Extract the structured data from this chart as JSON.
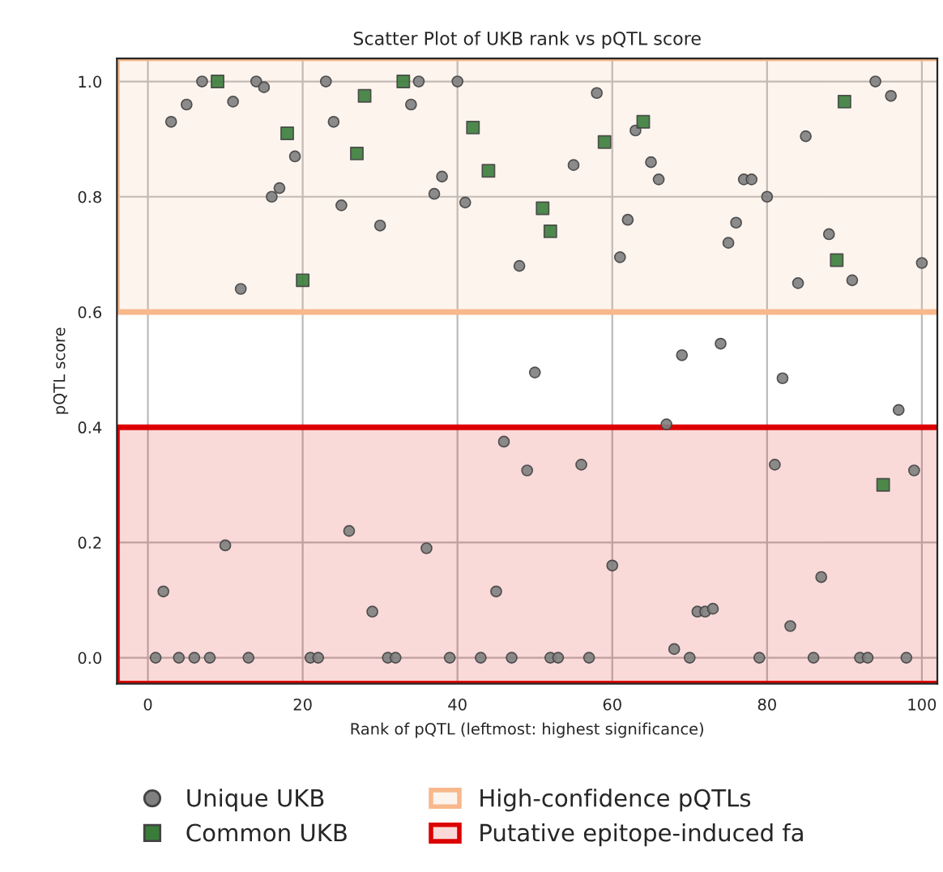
{
  "chart_data": {
    "type": "scatter",
    "title": "Scatter Plot of UKB rank vs pQTL score",
    "xlabel": "Rank of pQTL (leftmost: highest significance)",
    "ylabel": "pQTL score",
    "xlim": [
      -4,
      102
    ],
    "xticks": [
      0,
      20,
      40,
      60,
      80,
      100
    ],
    "ylim": [
      -0.045,
      1.04
    ],
    "yticks": [
      {
        "value": 0,
        "label": "0.0"
      },
      {
        "value": 0.2,
        "label": "0.2"
      },
      {
        "value": 0.4,
        "label": "0.4"
      },
      {
        "value": 0.6,
        "label": "0.6"
      },
      {
        "value": 0.8,
        "label": "0.8"
      },
      {
        "value": 1.0,
        "label": "1.0"
      }
    ],
    "grid": true,
    "legend": "bottom",
    "series": [
      {
        "name": "Unique UKB",
        "color": "#808080",
        "marker": "circle",
        "x": [
          3,
          5,
          7,
          11,
          14,
          15,
          19,
          16,
          17,
          12,
          23,
          24,
          25,
          30,
          35,
          34,
          38,
          37,
          40,
          41,
          48,
          58,
          55,
          62,
          61,
          63,
          65,
          66,
          77,
          78,
          80,
          76,
          75,
          85,
          94,
          96,
          88,
          84,
          91,
          100,
          1,
          4,
          6,
          8,
          13,
          21,
          22,
          31,
          32,
          39,
          43,
          47,
          52,
          53,
          57,
          70,
          79,
          86,
          92,
          93,
          98,
          2,
          10,
          26,
          29,
          36,
          45,
          46,
          49,
          50,
          69,
          74,
          82,
          97,
          67,
          56,
          81,
          99,
          60,
          87,
          83,
          71,
          72,
          73,
          68
        ],
        "values": [
          0.93,
          0.96,
          1.0,
          0.965,
          1.0,
          0.99,
          0.87,
          0.8,
          0.815,
          0.64,
          1.0,
          0.93,
          0.785,
          0.75,
          1.0,
          0.96,
          0.835,
          0.805,
          1.0,
          0.79,
          0.68,
          0.98,
          0.855,
          0.76,
          0.695,
          0.915,
          0.86,
          0.83,
          0.83,
          0.83,
          0.8,
          0.755,
          0.72,
          0.905,
          1.0,
          0.975,
          0.735,
          0.65,
          0.655,
          0.685,
          0,
          0,
          0,
          0,
          0,
          0,
          0,
          0,
          0,
          0,
          0,
          0,
          0,
          0,
          0,
          0,
          0,
          0,
          0,
          0,
          0,
          0.115,
          0.195,
          0.22,
          0.08,
          0.19,
          0.115,
          0.375,
          0.325,
          0.495,
          0.525,
          0.545,
          0.485,
          0.43,
          0.405,
          0.335,
          0.335,
          0.325,
          0.16,
          0.14,
          0.055,
          0.08,
          0.08,
          0.085,
          0.015
        ]
      },
      {
        "name": "Common UKB",
        "color": "#3a7d3a",
        "marker": "square",
        "x": [
          9,
          18,
          20,
          28,
          27,
          33,
          42,
          44,
          51,
          52,
          59,
          64,
          90,
          89,
          95
        ],
        "values": [
          1.0,
          0.91,
          0.655,
          0.975,
          0.875,
          1.0,
          0.92,
          0.845,
          0.78,
          0.74,
          0.895,
          0.93,
          0.965,
          0.69,
          0.3
        ]
      }
    ],
    "bands": [
      {
        "axis": "y",
        "from": 0.6,
        "to": 1.04,
        "label": "High-confidence pQTLs",
        "color": "#f8b88b"
      },
      {
        "axis": "y",
        "from": -0.045,
        "to": 0.4,
        "label": "Putative epitope-induced fa",
        "color": "#dd0000"
      }
    ]
  }
}
